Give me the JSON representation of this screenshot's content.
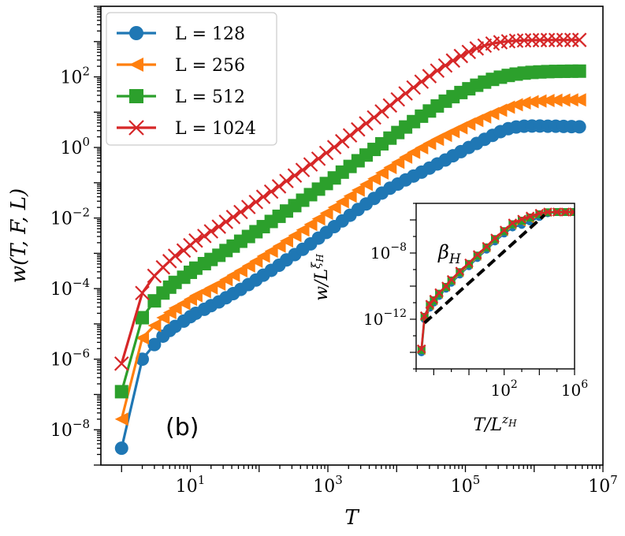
{
  "chart_data": [
    {
      "type": "line",
      "xlabel": "T",
      "ylabel": "w(T, F, L)",
      "x_scale": "log",
      "y_scale": "log",
      "xlim": [
        0.5,
        10000000.0
      ],
      "ylim": [
        1e-09,
        10000.0
      ],
      "x_ticks": [
        {
          "value": 10,
          "label": "10",
          "exp": "1"
        },
        {
          "value": 1000,
          "label": "10",
          "exp": "3"
        },
        {
          "value": 100000,
          "label": "10",
          "exp": "5"
        },
        {
          "value": 10000000,
          "label": "10",
          "exp": "7"
        }
      ],
      "y_ticks": [
        {
          "value": 1e-08,
          "label": "10",
          "exp": "−8"
        },
        {
          "value": 1e-06,
          "label": "10",
          "exp": "−6"
        },
        {
          "value": 0.0001,
          "label": "10",
          "exp": "−4"
        },
        {
          "value": 0.01,
          "label": "10",
          "exp": "−2"
        },
        {
          "value": 1,
          "label": "10",
          "exp": "0"
        },
        {
          "value": 100,
          "label": "10",
          "exp": "2"
        }
      ],
      "panel_label": "(b)",
      "legend_position": "top-left",
      "series": [
        {
          "name": "L = 128",
          "color": "#1f77b4",
          "marker": "circle",
          "x": [
            1,
            2,
            3,
            4,
            5,
            6,
            8,
            10,
            12,
            16,
            20,
            26,
            33,
            42,
            54,
            70,
            90,
            115,
            150,
            195,
            250,
            330,
            430,
            560,
            730,
            950,
            1240,
            1620,
            2100,
            2750,
            3600,
            4700,
            6100,
            8000,
            10400,
            13500,
            17600,
            23000,
            30000,
            39000,
            51000,
            66000,
            86000,
            112000,
            146000,
            190000,
            248000,
            323000,
            420000,
            548000,
            714000,
            930000,
            1210000,
            1580000,
            2060000,
            2680000,
            3500000,
            4550000
          ],
          "y": [
            3e-09,
            1e-06,
            2.6e-06,
            4.5e-06,
            6.5e-06,
            8.5e-06,
            1.2e-05,
            1.6e-05,
            2e-05,
            2.6e-05,
            3.3e-05,
            4.2e-05,
            5.5e-05,
            7.2e-05,
            9.5e-05,
            0.00013,
            0.000175,
            0.00024,
            0.00033,
            0.00046,
            0.00065,
            0.00092,
            0.0013,
            0.00185,
            0.0027,
            0.0039,
            0.0057,
            0.0083,
            0.012,
            0.0175,
            0.025,
            0.036,
            0.051,
            0.07,
            0.092,
            0.12,
            0.155,
            0.2,
            0.26,
            0.34,
            0.44,
            0.58,
            0.76,
            1.0,
            1.3,
            1.7,
            2.2,
            2.8,
            3.4,
            3.8,
            4.0,
            4.05,
            4.05,
            4.0,
            4.0,
            3.95,
            3.9,
            3.85
          ]
        },
        {
          "name": "L = 256",
          "color": "#ff7f0e",
          "marker": "triangle-left",
          "x": [
            1,
            2,
            3,
            4,
            5,
            6,
            8,
            10,
            12,
            16,
            20,
            26,
            33,
            42,
            54,
            70,
            90,
            115,
            150,
            195,
            250,
            330,
            430,
            560,
            730,
            950,
            1240,
            1620,
            2100,
            2750,
            3600,
            4700,
            6100,
            8000,
            10400,
            13500,
            17600,
            23000,
            30000,
            39000,
            51000,
            66000,
            86000,
            112000,
            146000,
            190000,
            248000,
            323000,
            420000,
            548000,
            714000,
            930000,
            1210000,
            1580000,
            2060000,
            2680000,
            3500000,
            4550000
          ],
          "y": [
            2e-08,
            4e-06,
            9e-06,
            1.5e-05,
            2.1e-05,
            2.8e-05,
            3.8e-05,
            5e-05,
            6.3e-05,
            8.2e-05,
            0.000105,
            0.000135,
            0.00018,
            0.00024,
            0.00032,
            0.00044,
            0.0006,
            0.00083,
            0.00115,
            0.0016,
            0.00225,
            0.0032,
            0.0046,
            0.0066,
            0.0095,
            0.0137,
            0.02,
            0.029,
            0.042,
            0.062,
            0.09,
            0.13,
            0.19,
            0.27,
            0.38,
            0.53,
            0.73,
            0.98,
            1.3,
            1.7,
            2.2,
            2.8,
            3.6,
            4.6,
            5.8,
            7.3,
            9.1,
            11.3,
            13.8,
            16.2,
            18.3,
            19.8,
            20.8,
            21.4,
            21.8,
            22,
            22.2,
            22.3
          ]
        },
        {
          "name": "L = 512",
          "color": "#2ca02c",
          "marker": "square",
          "x": [
            1,
            2,
            3,
            4,
            5,
            6,
            8,
            10,
            12,
            16,
            20,
            26,
            33,
            42,
            54,
            70,
            90,
            115,
            150,
            195,
            250,
            330,
            430,
            560,
            730,
            950,
            1240,
            1620,
            2100,
            2750,
            3600,
            4700,
            6100,
            8000,
            10400,
            13500,
            17600,
            23000,
            30000,
            39000,
            51000,
            66000,
            86000,
            112000,
            146000,
            190000,
            248000,
            323000,
            420000,
            548000,
            714000,
            930000,
            1210000,
            1580000,
            2060000,
            2680000,
            3500000,
            4550000
          ],
          "y": [
            1.2e-07,
            1.5e-05,
            4.5e-05,
            7.5e-05,
            0.00011,
            0.00015,
            0.00021,
            0.00029,
            0.00038,
            0.00051,
            0.00067,
            0.00088,
            0.0012,
            0.0016,
            0.0022,
            0.003,
            0.0041,
            0.0057,
            0.008,
            0.0112,
            0.0158,
            0.0225,
            0.032,
            0.046,
            0.066,
            0.095,
            0.137,
            0.2,
            0.29,
            0.42,
            0.61,
            0.88,
            1.27,
            1.84,
            2.65,
            3.8,
            5.4,
            7.7,
            10.8,
            15,
            20.5,
            27.5,
            36,
            46,
            58,
            71,
            85,
            98,
            110,
            120,
            128,
            134,
            138,
            141,
            143,
            144,
            145,
            145.5
          ]
        },
        {
          "name": "L = 1024",
          "color": "#d62728",
          "marker": "x",
          "x": [
            1,
            2,
            3,
            4,
            5,
            6,
            8,
            10,
            12,
            16,
            20,
            26,
            33,
            42,
            54,
            70,
            90,
            115,
            150,
            195,
            250,
            330,
            430,
            560,
            730,
            950,
            1240,
            1620,
            2100,
            2750,
            3600,
            4700,
            6100,
            8000,
            10400,
            13500,
            17600,
            23000,
            30000,
            39000,
            51000,
            66000,
            86000,
            112000,
            146000,
            190000,
            248000,
            323000,
            420000,
            548000,
            714000,
            930000,
            1210000,
            1580000,
            2060000,
            2680000,
            3500000,
            4550000
          ],
          "y": [
            7.5e-07,
            7.5e-05,
            0.00023,
            0.0004,
            0.0006,
            0.00085,
            0.0012,
            0.0017,
            0.0023,
            0.0031,
            0.0042,
            0.0057,
            0.0078,
            0.0107,
            0.0148,
            0.0205,
            0.0285,
            0.04,
            0.056,
            0.079,
            0.112,
            0.16,
            0.23,
            0.33,
            0.48,
            0.7,
            1.02,
            1.5,
            2.2,
            3.25,
            4.8,
            7.1,
            10.5,
            15.5,
            23,
            34,
            50,
            73,
            105,
            150,
            210,
            290,
            390,
            510,
            640,
            770,
            880,
            960,
            1020,
            1060,
            1080,
            1095,
            1100,
            1105,
            1108,
            1110,
            1112,
            1113
          ]
        }
      ]
    },
    {
      "type": "line",
      "inset": true,
      "xlabel": "T/L^zH",
      "ylabel": "w/L^ξH",
      "x_scale": "log",
      "y_scale": "log",
      "xlim": [
        0.001,
        1000000.0
      ],
      "ylim": [
        1e-15,
        1e-05
      ],
      "x_ticks": [
        {
          "value": 100,
          "label": "10",
          "exp": "2"
        },
        {
          "value": 1000000,
          "label": "10",
          "exp": "6"
        }
      ],
      "y_ticks": [
        {
          "value": 1e-12,
          "label": "10",
          "exp": "−12"
        },
        {
          "value": 1e-08,
          "label": "10",
          "exp": "−8"
        }
      ],
      "annotation": "β_H",
      "guide_line": {
        "style": "dashed",
        "color": "#000000",
        "x": [
          0.003,
          20000
        ],
        "y": [
          6e-13,
          2e-06
        ]
      },
      "series": [
        {
          "name": "L = 128",
          "color": "#1f77b4",
          "marker": "circle",
          "x": [
            0.002,
            0.003,
            0.006,
            0.01,
            0.02,
            0.05,
            0.1,
            0.3,
            1,
            3,
            10,
            30,
            100,
            300,
            1000,
            3000,
            10000,
            30000,
            100000,
            300000,
            900000
          ],
          "y": [
            1e-14,
            1e-12,
            5e-12,
            1e-11,
            2.5e-11,
            7e-11,
            1.6e-10,
            5e-10,
            1.6e-09,
            5e-09,
            1.6e-08,
            5e-08,
            1.5e-07,
            3.5e-07,
            5e-07,
            8e-07,
            1.5e-06,
            2.5e-06,
            3e-06,
            3e-06,
            3e-06
          ]
        },
        {
          "name": "L = 256",
          "color": "#ff7f0e",
          "marker": "triangle-left",
          "x": [
            0.002,
            0.003,
            0.006,
            0.01,
            0.02,
            0.05,
            0.1,
            0.3,
            1,
            3,
            10,
            30,
            100,
            300,
            1000,
            3000,
            10000,
            30000,
            100000,
            300000,
            900000
          ],
          "y": [
            1.2e-14,
            1.2e-12,
            6e-12,
            1.2e-11,
            3e-11,
            8e-11,
            1.9e-10,
            6e-10,
            1.9e-09,
            6e-09,
            1.9e-08,
            6e-08,
            1.8e-07,
            4.5e-07,
            7e-07,
            1.1e-06,
            1.9e-06,
            2.7e-06,
            3e-06,
            3e-06,
            3e-06
          ]
        },
        {
          "name": "L = 512",
          "color": "#2ca02c",
          "marker": "square",
          "x": [
            0.002,
            0.003,
            0.006,
            0.01,
            0.02,
            0.05,
            0.1,
            0.3,
            1,
            3,
            10,
            30,
            100,
            300,
            1000,
            3000,
            10000,
            30000,
            100000,
            300000,
            900000
          ],
          "y": [
            1.4e-14,
            1.4e-12,
            7e-12,
            1.4e-11,
            3.5e-11,
            9e-11,
            2.2e-10,
            7e-10,
            2.2e-09,
            7e-09,
            2.2e-08,
            7e-08,
            2.1e-07,
            5.5e-07,
            9e-07,
            1.4e-06,
            2.2e-06,
            2.9e-06,
            3e-06,
            3e-06,
            3e-06
          ]
        },
        {
          "name": "L = 1024",
          "color": "#d62728",
          "marker": "x",
          "x": [
            0.002,
            0.003,
            0.006,
            0.01,
            0.02,
            0.05,
            0.1,
            0.3,
            1,
            3,
            10,
            30,
            100,
            300,
            1000,
            3000,
            10000,
            30000,
            100000,
            300000,
            900000
          ],
          "y": [
            1.6e-14,
            1.6e-12,
            8e-12,
            1.6e-11,
            4e-11,
            1e-10,
            2.5e-10,
            8e-10,
            2.5e-09,
            8e-09,
            2.5e-08,
            8e-08,
            2.4e-07,
            6.5e-07,
            1.1e-06,
            1.7e-06,
            2.5e-06,
            3e-06,
            3e-06,
            3e-06,
            3e-06
          ]
        }
      ]
    }
  ]
}
